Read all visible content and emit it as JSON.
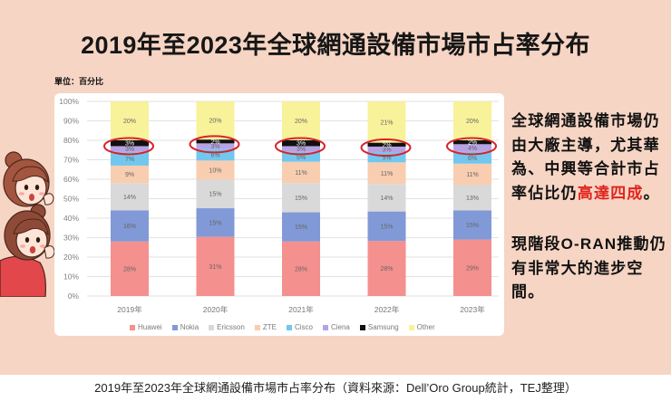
{
  "title": "2019年至2023年全球網通設備市場市占率分布",
  "unit_label": "單位：百分比",
  "chart_data": {
    "type": "bar",
    "stacked": true,
    "title": "",
    "xlabel": "",
    "ylabel": "",
    "categories": [
      "2019年",
      "2020年",
      "2021年",
      "2022年",
      "2023年"
    ],
    "series": [
      {
        "name": "Huawei",
        "color": "#f4908e",
        "values": [
          28,
          31,
          28,
          28,
          29
        ]
      },
      {
        "name": "Nokia",
        "color": "#8199d6",
        "values": [
          16,
          15,
          15,
          15,
          15
        ]
      },
      {
        "name": "Ericsson",
        "color": "#d9d9d9",
        "values": [
          14,
          15,
          15,
          14,
          13
        ]
      },
      {
        "name": "ZTE",
        "color": "#f8cdb0",
        "values": [
          9,
          10,
          11,
          11,
          11
        ]
      },
      {
        "name": "Cisco",
        "color": "#72c7ef",
        "values": [
          7,
          6,
          5,
          5,
          6
        ]
      },
      {
        "name": "Ciena",
        "color": "#b7a3e3",
        "values": [
          3,
          3,
          3,
          3,
          4
        ],
        "circled": true
      },
      {
        "name": "Samsung",
        "color": "#111111",
        "values": [
          3,
          2,
          3,
          2,
          2
        ],
        "circled": true
      },
      {
        "name": "Other",
        "color": "#f8f29a",
        "values": [
          20,
          20,
          20,
          21,
          20
        ]
      }
    ],
    "ylim": [
      0,
      100
    ],
    "yticks": [
      0,
      10,
      20,
      30,
      40,
      50,
      60,
      70,
      80,
      90,
      100
    ],
    "value_suffix": "%",
    "grid": true,
    "legend": "bottom",
    "circle_color": "#d8232a"
  },
  "callout": {
    "paragraph1": {
      "lines": [
        "全球網通設備市場仍",
        "由大廠主導，尤其華",
        "為、中興等合計市占"
      ],
      "last_line_pre": "率佔比仍",
      "highlight": "高達四成",
      "last_line_post": "。"
    },
    "paragraph2": {
      "lines": [
        "現階段O-RAN推動仍",
        "有非常大的進步空",
        "間。"
      ]
    }
  },
  "caption": "2019年至2023年全球網通設備市場市占率分布（資料來源：Dell’Oro Group統計，TEJ整理）",
  "colors": {
    "background": "#f6d5c4",
    "highlight_text": "#e0231d",
    "hair": "#a4553f",
    "shirt": "#e2474b"
  }
}
